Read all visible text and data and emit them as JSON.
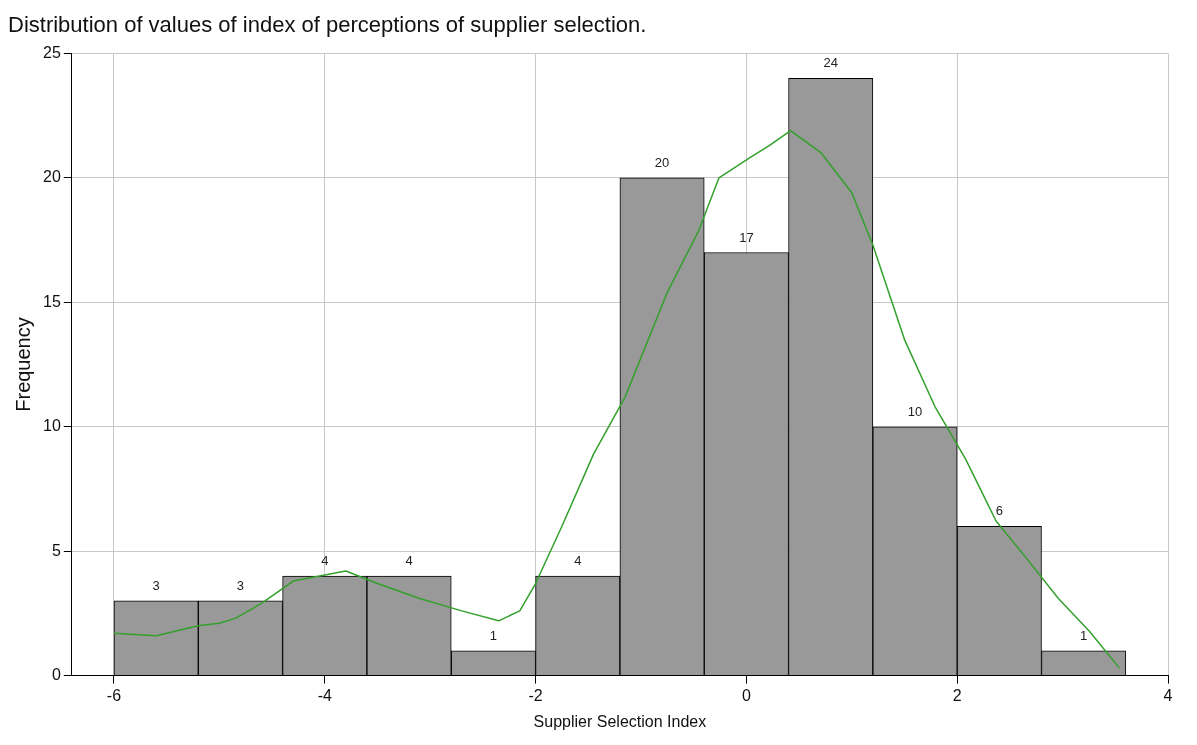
{
  "chart_data": {
    "type": "histogram",
    "title": "Distribution of values of index of perceptions of supplier selection.",
    "xlabel": "Supplier Selection Index",
    "ylabel": "Frequency",
    "bins": [
      -6,
      -5.2,
      -4.4,
      -3.6,
      -2.8,
      -2.0,
      -1.2,
      -0.4,
      0.4,
      1.2,
      2.0,
      2.8,
      3.6
    ],
    "values": [
      3,
      3,
      4,
      4,
      1,
      4,
      20,
      17,
      24,
      10,
      6,
      1
    ],
    "color": "#999999",
    "series": [
      {
        "type": "line",
        "color": "#33a02c",
        "x": [
          -6,
          -5.6,
          -5.2,
          -5.0,
          -4.85,
          -4.6,
          -4.3,
          -3.8,
          -3.5,
          -3.1,
          -2.7,
          -2.35,
          -2.15,
          -2.0,
          -1.75,
          -1.45,
          -1.15,
          -0.75,
          -0.45,
          -0.26,
          0.03,
          0.22,
          0.42,
          0.71,
          1.0,
          1.2,
          1.5,
          1.79,
          2.08,
          2.37,
          2.66,
          2.96,
          3.25,
          3.54
        ],
        "values": [
          1.7,
          1.6,
          2.0,
          2.1,
          2.3,
          2.9,
          3.8,
          4.2,
          3.7,
          3.1,
          2.6,
          2.2,
          2.6,
          3.7,
          6.0,
          8.9,
          11.2,
          15.4,
          17.9,
          20.0,
          20.8,
          21.3,
          21.9,
          21.0,
          19.4,
          17.3,
          13.5,
          10.8,
          8.7,
          6.2,
          4.7,
          3.1,
          1.8,
          0.3
        ]
      }
    ],
    "xlim": [
      -6.4,
      4
    ],
    "xticks": [
      -6,
      -4,
      -2,
      0,
      2,
      4
    ],
    "ylim": [
      0,
      25
    ],
    "yticks": [
      0,
      5,
      10,
      15,
      20,
      25
    ],
    "value_labels": [
      "3",
      "3",
      "4",
      "4",
      "1",
      "4",
      "20",
      "17",
      "24",
      "10",
      "6",
      "1"
    ],
    "grid": true,
    "legend": false
  }
}
